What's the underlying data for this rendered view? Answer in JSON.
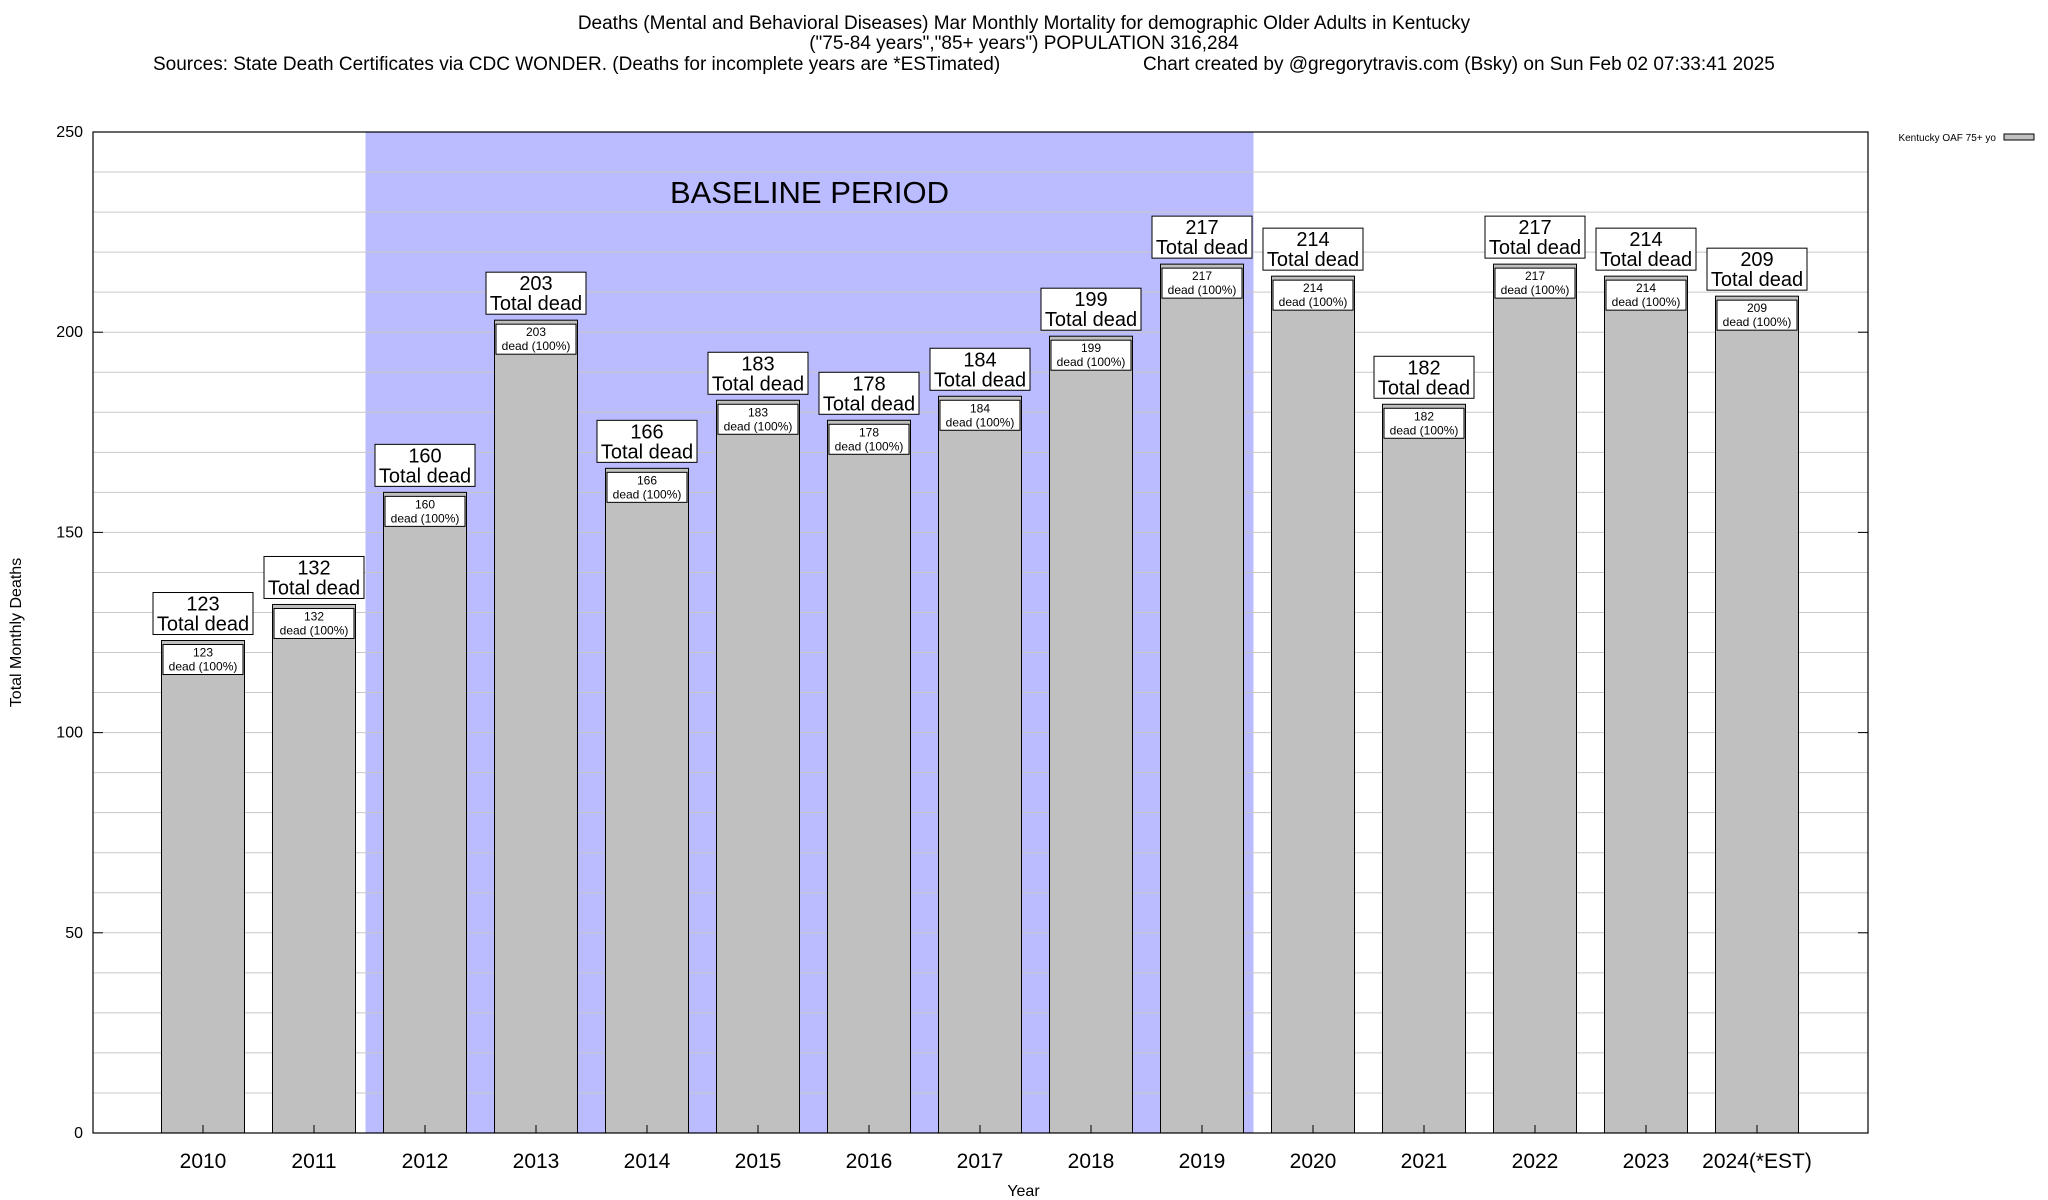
{
  "chart_data": {
    "type": "bar",
    "title": "Deaths (Mental and Behavioral Diseases) Mar Monthly Mortality for demographic Older Adults in Kentucky",
    "subtitle": "(\"75-84 years\",\"85+ years\") POPULATION 316,284",
    "sources": "Sources: State Death Certificates via CDC WONDER. (Deaths for incomplete years are *ESTimated)",
    "credit": "Chart created by @gregorytravis.com (Bsky) on Sun Feb 02 07:33:41 2025",
    "xlabel": "Year",
    "ylabel": "Total Monthly Deaths",
    "ylim": [
      0,
      250
    ],
    "yticks": [
      0,
      50,
      100,
      150,
      200,
      250
    ],
    "grid": true,
    "legend": "Kentucky OAF 75+ yo",
    "legend_position": "top-right",
    "baseline_label": "BASELINE PERIOD",
    "baseline_period": [
      "2012",
      "2019"
    ],
    "bar_color": "#c0c0c0",
    "baseline_color": "#bbbbff",
    "total_label_suffix": "Total dead",
    "inner_label_suffix": "dead (100%)",
    "categories": [
      "2010",
      "2011",
      "2012",
      "2013",
      "2014",
      "2015",
      "2016",
      "2017",
      "2018",
      "2019",
      "2020",
      "2021",
      "2022",
      "2023",
      "2024(*EST)"
    ],
    "values": [
      123,
      132,
      160,
      203,
      166,
      183,
      178,
      184,
      199,
      217,
      214,
      182,
      217,
      214,
      209
    ]
  }
}
